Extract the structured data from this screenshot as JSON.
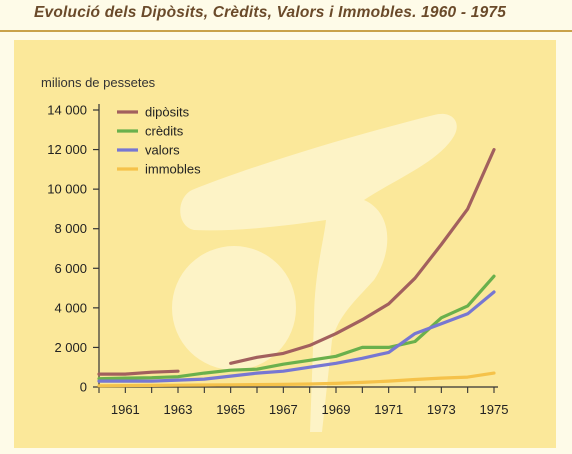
{
  "title": "Evolució dels Dipòsits, Crèdits, Valors i Immobles. 1960 - 1975",
  "chart_data": {
    "type": "line",
    "ylabel": "milions de pessetes",
    "xlabel": "",
    "ylim": [
      0,
      14000
    ],
    "xlim": [
      1960,
      1975
    ],
    "y_ticks": [
      0,
      2000,
      4000,
      6000,
      8000,
      10000,
      12000,
      14000
    ],
    "y_tick_labels": [
      "0",
      "2 000",
      "4 000",
      "6 000",
      "8 000",
      "10 000",
      "12 000",
      "14 000"
    ],
    "x_tick_labels": [
      "1961",
      "1963",
      "1965",
      "1967",
      "1969",
      "1971",
      "1973",
      "1975"
    ],
    "legend_position": "top-left",
    "grid": false,
    "series": [
      {
        "name": "dipòsits",
        "color": "#a2605e",
        "x": [
          1960,
          1961,
          1962,
          1963,
          null,
          1965,
          1966,
          1967,
          1968,
          1969,
          1970,
          1971,
          1972,
          1973,
          1974,
          1975
        ],
        "values": [
          650,
          650,
          750,
          800,
          null,
          1200,
          1500,
          1700,
          2100,
          2700,
          3400,
          4200,
          5500,
          7200,
          9000,
          12000
        ]
      },
      {
        "name": "crèdits",
        "color": "#6ab04c",
        "x": [
          1960,
          1961,
          1962,
          1963,
          1964,
          1965,
          1966,
          1967,
          1968,
          1969,
          1970,
          1971,
          1972,
          1973,
          1974,
          1975
        ],
        "values": [
          420,
          450,
          470,
          520,
          700,
          850,
          900,
          1150,
          1350,
          1550,
          2000,
          2000,
          2300,
          3500,
          4100,
          5600
        ]
      },
      {
        "name": "valors",
        "color": "#7777d2",
        "x": [
          1960,
          1961,
          1962,
          1963,
          1964,
          1965,
          1966,
          1967,
          1968,
          1969,
          1970,
          1971,
          1972,
          1973,
          1974,
          1975
        ],
        "values": [
          300,
          300,
          300,
          350,
          400,
          550,
          700,
          800,
          1000,
          1200,
          1450,
          1750,
          2700,
          3200,
          3700,
          4800
        ]
      },
      {
        "name": "immobles",
        "color": "#f5c24a",
        "x": [
          1960,
          1961,
          1962,
          1963,
          1964,
          1965,
          1966,
          1967,
          1968,
          1969,
          1970,
          1971,
          1972,
          1973,
          1974,
          1975
        ],
        "values": [
          60,
          70,
          80,
          90,
          100,
          110,
          120,
          130,
          150,
          180,
          230,
          300,
          380,
          450,
          500,
          700
        ]
      }
    ]
  }
}
